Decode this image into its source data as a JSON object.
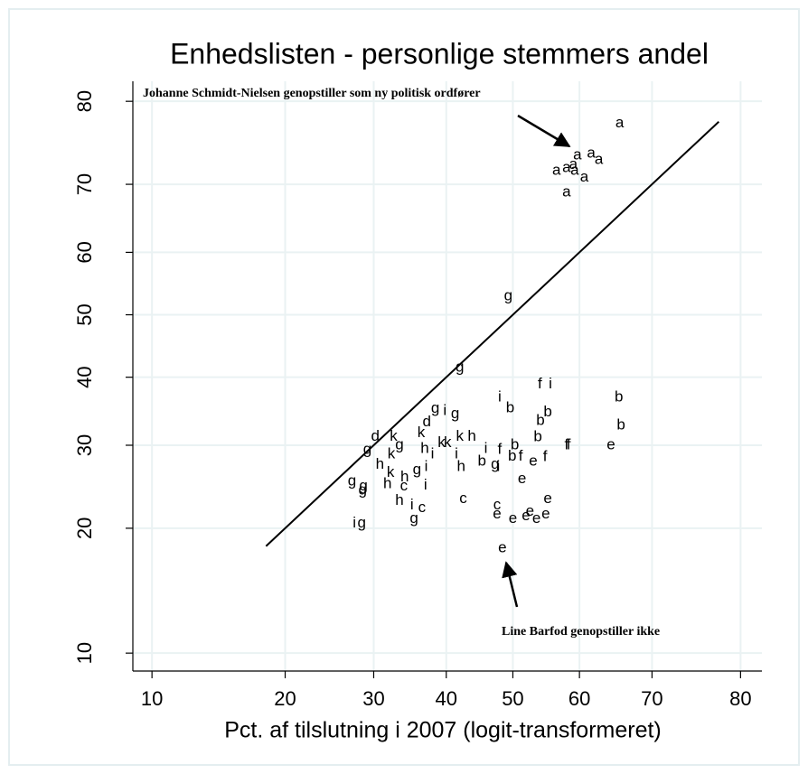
{
  "chart_data": {
    "type": "scatter",
    "title": "Enhedslisten - personlige stemmers andel",
    "x_label": "Pct. af tilslutning i 2007 (logit-transformeret)",
    "scale": "logit",
    "xlim": [
      9,
      82
    ],
    "ylim": [
      9,
      82
    ],
    "xticks": [
      10,
      20,
      30,
      40,
      50,
      60,
      70,
      80
    ],
    "yticks": [
      10,
      20,
      30,
      40,
      50,
      60,
      70,
      80
    ],
    "grid": true,
    "marker_color": "#000000",
    "x": [
      65.7,
      59.7,
      61.7,
      62.8,
      56.6,
      58.1,
      59.1,
      59.3,
      60.7,
      58.1,
      49.3,
      42.0,
      54.1,
      55.7,
      48.0,
      49.6,
      65.6,
      38.4,
      39.8,
      41.3,
      55.3,
      54.2,
      65.9,
      37.2,
      30.2,
      32.6,
      36.4,
      42.0,
      43.8,
      39.3,
      40.2,
      33.4,
      29.2,
      53.8,
      50.3,
      58.1,
      58.4,
      64.5,
      45.9,
      48.0,
      36.9,
      38.0,
      41.5,
      32.3,
      30.8,
      37.1,
      42.2,
      45.3,
      47.3,
      47.8,
      49.9,
      51.2,
      54.9,
      53.1,
      32.2,
      34.1,
      35.8,
      51.4,
      27.3,
      28.7,
      31.8,
      34.0,
      37.0,
      33.4,
      35.1,
      36.5,
      42.5,
      47.6,
      47.6,
      50.0,
      52.0,
      52.6,
      53.6,
      55.3,
      55.0,
      35.4,
      28.5,
      27.6,
      48.4,
      28.6
    ],
    "y": [
      77.6,
      73.8,
      74.0,
      73.2,
      71.8,
      72.2,
      72.6,
      71.8,
      70.9,
      68.9,
      53.0,
      41.5,
      38.9,
      38.9,
      36.9,
      35.3,
      36.9,
      35.2,
      34.9,
      34.4,
      34.7,
      33.4,
      32.8,
      33.2,
      31.2,
      31.2,
      31.7,
      31.2,
      31.2,
      30.3,
      30.3,
      30.0,
      29.4,
      31.1,
      30.0,
      30.0,
      30.0,
      30.0,
      29.5,
      29.4,
      29.5,
      28.8,
      28.8,
      28.8,
      27.4,
      27.1,
      27.1,
      27.8,
      27.4,
      27.1,
      28.5,
      28.5,
      28.4,
      27.8,
      26.4,
      25.8,
      26.7,
      25.6,
      25.3,
      24.7,
      25.0,
      24.7,
      24.8,
      23.0,
      22.5,
      22.2,
      23.2,
      22.5,
      21.5,
      21.0,
      21.3,
      21.8,
      21.0,
      23.2,
      21.5,
      21.0,
      20.5,
      20.5,
      18.0,
      24.2
    ],
    "labels": [
      "a",
      "a",
      "a",
      "a",
      "a",
      "a",
      "a",
      "a",
      "a",
      "a",
      "g",
      "g",
      "f",
      "i",
      "i",
      "b",
      "b",
      "g",
      "i",
      "g",
      "b",
      "b",
      "b",
      "d",
      "d",
      "k",
      "k",
      "k",
      "h",
      "k",
      "k",
      "g",
      "g",
      "b",
      "b",
      "f",
      "f",
      "e",
      "i",
      "f",
      "h",
      "i",
      "i",
      "k",
      "h",
      "i",
      "h",
      "b",
      "g",
      "i",
      "b",
      "f",
      "f",
      "e",
      "k",
      "h",
      "g",
      "e",
      "g",
      "g",
      "h",
      "c",
      "i",
      "h",
      "i",
      "c",
      "c",
      "c",
      "e",
      "e",
      "e",
      "e",
      "e",
      "e",
      "e",
      "g",
      "g",
      "i",
      "e",
      "g"
    ],
    "reference_line": {
      "x": [
        18.2,
        77.8
      ],
      "y": [
        18.2,
        77.8
      ]
    },
    "annotations": [
      "Johanne Schmidt-Nielsen genopstiller som ny politisk ordfører",
      "Line Barfod genopstiller ikke"
    ]
  }
}
